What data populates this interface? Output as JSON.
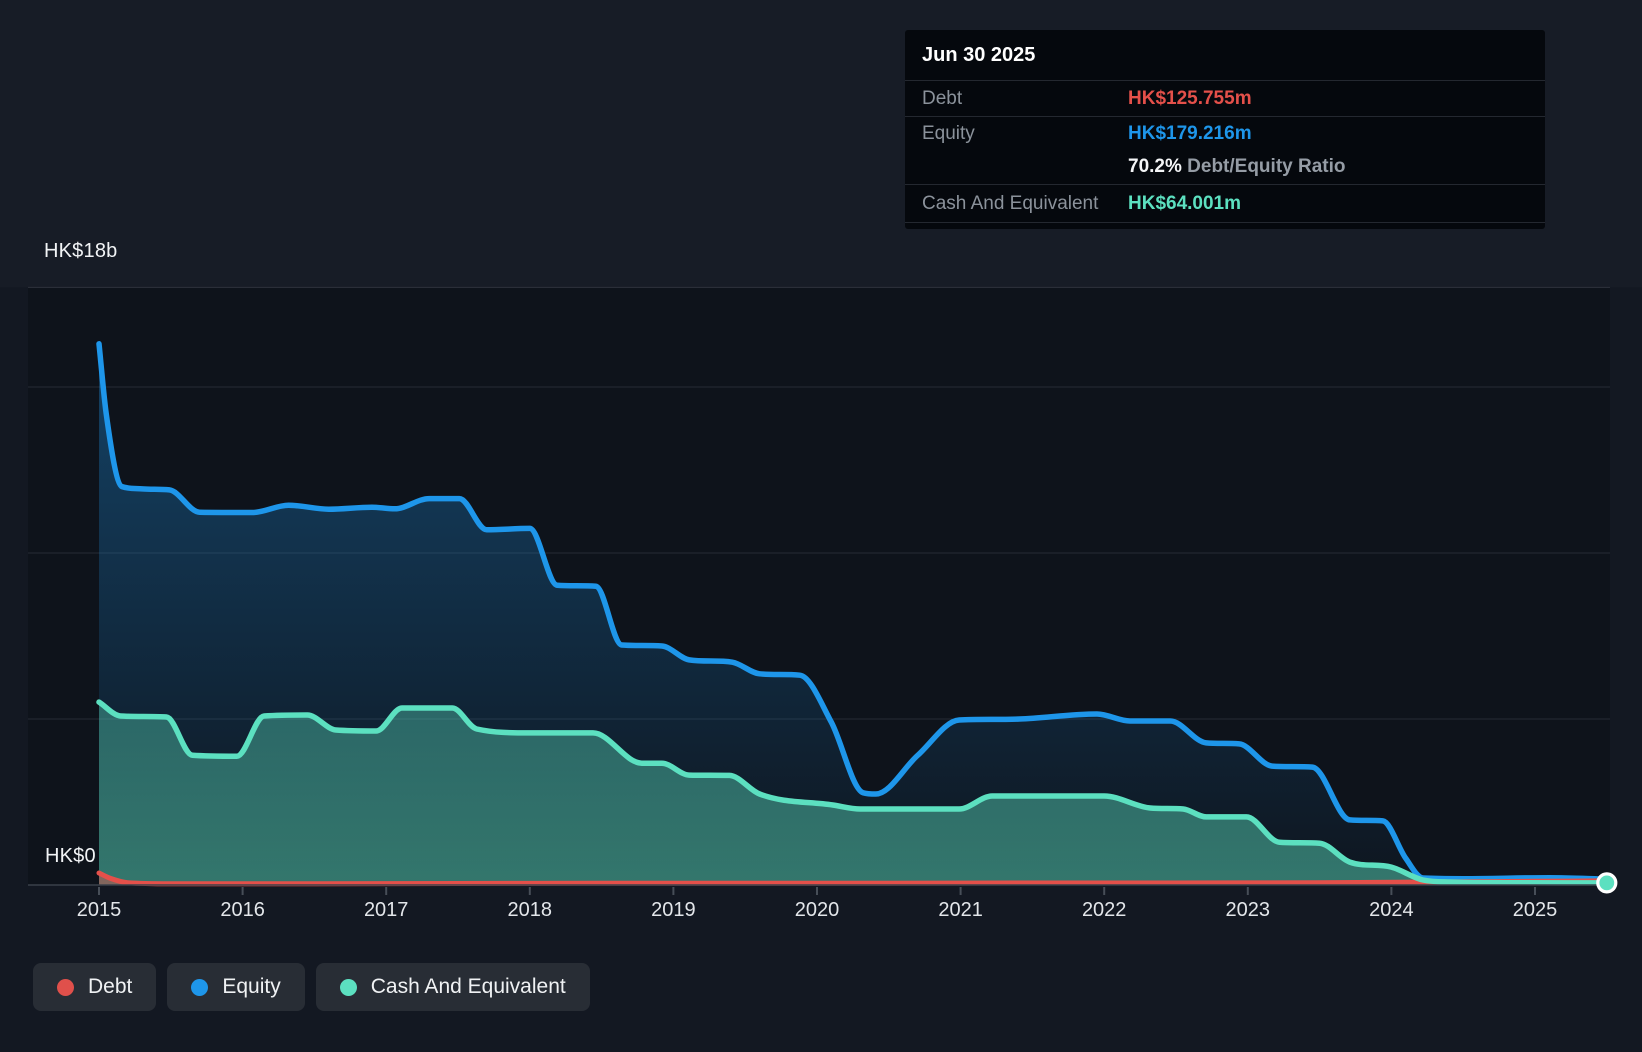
{
  "y_axis": {
    "max_label": "HK$18b",
    "zero_label": "HK$0"
  },
  "x_axis": {
    "years": [
      "2015",
      "2016",
      "2017",
      "2018",
      "2019",
      "2020",
      "2021",
      "2022",
      "2023",
      "2024",
      "2025"
    ]
  },
  "tooltip": {
    "date": "Jun 30 2025",
    "rows": [
      {
        "label": "Debt",
        "value": "HK$125.755m",
        "color": "#e4504a"
      },
      {
        "label": "Equity",
        "value": "HK$179.216m",
        "color": "#1e96ea"
      },
      {
        "label": "",
        "ratio_value": "70.2%",
        "ratio_label": "Debt/Equity Ratio"
      },
      {
        "label": "Cash And Equivalent",
        "value": "HK$64.001m",
        "color": "#5ce0c0"
      }
    ]
  },
  "legend": {
    "items": [
      {
        "label": "Debt",
        "color": "#e0504b"
      },
      {
        "label": "Equity",
        "color": "#1e96ea"
      },
      {
        "label": "Cash And Equivalent",
        "color": "#5ce0c0"
      }
    ]
  },
  "colors": {
    "page_bg": "#131822",
    "strip_bg": "#171c26",
    "plot_bg": "#0e131b",
    "gridline": "#262b34",
    "gridline_top": "#2e333d",
    "axis_line": "#3a414b",
    "tick": "#474e58",
    "debt": "#e4504a",
    "equity": "#1e96ea",
    "cash": "#5ce0c0",
    "marker_ring": "#ffffff"
  },
  "chart_data": {
    "type": "area",
    "title": "Debt to Equity History",
    "unit": "HK$ billions",
    "x_range": [
      2015,
      2025.5
    ],
    "y_max": 18,
    "y_axis_top_label_value": 18,
    "gridline_values": [
      18,
      15,
      10,
      5,
      0
    ],
    "grid": true,
    "legend_position": "bottom-left",
    "end_marker": {
      "series": "Cash And Equivalent",
      "x": 2025.5,
      "value": 0.064
    },
    "series": [
      {
        "name": "Equity",
        "color": "#1e96ea",
        "points": [
          [
            2015.0,
            16.3
          ],
          [
            2015.05,
            14.2
          ],
          [
            2015.16,
            12.0
          ],
          [
            2015.3,
            11.93
          ],
          [
            2015.49,
            11.9
          ],
          [
            2015.7,
            11.23
          ],
          [
            2016.07,
            11.22
          ],
          [
            2016.32,
            11.44
          ],
          [
            2016.6,
            11.32
          ],
          [
            2016.9,
            11.38
          ],
          [
            2017.06,
            11.33
          ],
          [
            2017.3,
            11.64
          ],
          [
            2017.51,
            11.64
          ],
          [
            2017.7,
            10.7
          ],
          [
            2018.0,
            10.74
          ],
          [
            2018.19,
            9.03
          ],
          [
            2018.46,
            9.0
          ],
          [
            2018.64,
            7.23
          ],
          [
            2018.92,
            7.2
          ],
          [
            2019.11,
            6.78
          ],
          [
            2019.41,
            6.71
          ],
          [
            2019.6,
            6.36
          ],
          [
            2019.88,
            6.32
          ],
          [
            2020.1,
            4.9
          ],
          [
            2020.32,
            2.78
          ],
          [
            2020.41,
            2.74
          ],
          [
            2020.7,
            3.9
          ],
          [
            2020.99,
            4.97
          ],
          [
            2021.41,
            5.0
          ],
          [
            2021.95,
            5.15
          ],
          [
            2022.18,
            4.94
          ],
          [
            2022.46,
            4.94
          ],
          [
            2022.71,
            4.28
          ],
          [
            2022.94,
            4.25
          ],
          [
            2023.17,
            3.58
          ],
          [
            2023.45,
            3.55
          ],
          [
            2023.71,
            1.96
          ],
          [
            2023.94,
            1.93
          ],
          [
            2024.1,
            0.8
          ],
          [
            2024.22,
            0.21
          ],
          [
            2024.5,
            0.19
          ],
          [
            2025.1,
            0.22
          ],
          [
            2025.5,
            0.179
          ]
        ]
      },
      {
        "name": "Cash And Equivalent",
        "color": "#5ce0c0",
        "points": [
          [
            2015.0,
            5.51
          ],
          [
            2015.15,
            5.09
          ],
          [
            2015.47,
            5.06
          ],
          [
            2015.65,
            3.91
          ],
          [
            2015.96,
            3.88
          ],
          [
            2016.15,
            5.09
          ],
          [
            2016.45,
            5.12
          ],
          [
            2016.65,
            4.67
          ],
          [
            2016.93,
            4.64
          ],
          [
            2017.11,
            5.33
          ],
          [
            2017.46,
            5.33
          ],
          [
            2017.63,
            4.7
          ],
          [
            2018.0,
            4.58
          ],
          [
            2018.44,
            4.58
          ],
          [
            2018.78,
            3.67
          ],
          [
            2018.92,
            3.67
          ],
          [
            2019.11,
            3.31
          ],
          [
            2019.39,
            3.3
          ],
          [
            2019.6,
            2.74
          ],
          [
            2020.11,
            2.41
          ],
          [
            2020.3,
            2.29
          ],
          [
            2020.99,
            2.29
          ],
          [
            2021.22,
            2.68
          ],
          [
            2022.0,
            2.68
          ],
          [
            2022.32,
            2.32
          ],
          [
            2022.55,
            2.29
          ],
          [
            2022.71,
            2.05
          ],
          [
            2022.99,
            2.05
          ],
          [
            2023.22,
            1.29
          ],
          [
            2023.5,
            1.26
          ],
          [
            2023.71,
            0.69
          ],
          [
            2024.0,
            0.54
          ],
          [
            2024.22,
            0.15
          ],
          [
            2024.41,
            0.09
          ],
          [
            2024.8,
            0.07
          ],
          [
            2025.5,
            0.064
          ]
        ]
      },
      {
        "name": "Debt",
        "color": "#e4504a",
        "points": [
          [
            2015.0,
            0.36
          ],
          [
            2015.08,
            0.2
          ],
          [
            2015.2,
            0.07
          ],
          [
            2015.5,
            0.04
          ],
          [
            2016.5,
            0.04
          ],
          [
            2017.5,
            0.045
          ],
          [
            2018.5,
            0.05
          ],
          [
            2019.5,
            0.05
          ],
          [
            2020.5,
            0.05
          ],
          [
            2021.5,
            0.06
          ],
          [
            2022.5,
            0.06
          ],
          [
            2023.5,
            0.07
          ],
          [
            2024.3,
            0.09
          ],
          [
            2025.0,
            0.11
          ],
          [
            2025.5,
            0.126
          ]
        ]
      }
    ]
  }
}
